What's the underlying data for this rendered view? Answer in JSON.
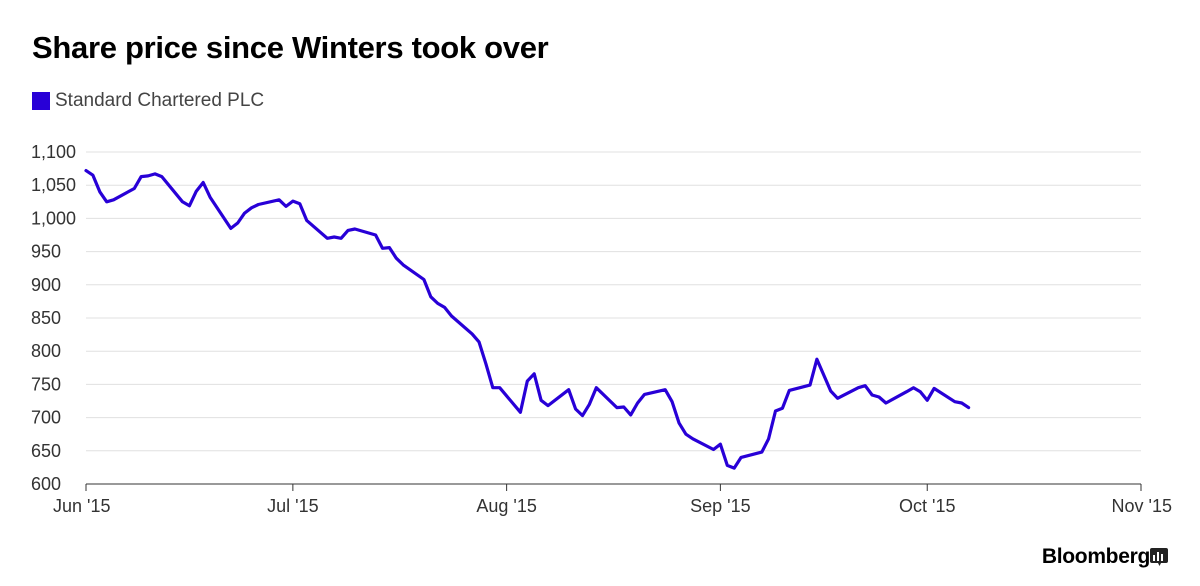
{
  "title": "Share price since Winters took over",
  "legend": {
    "label": "Standard Chartered PLC",
    "color": "#2800d7"
  },
  "brand": {
    "name": "Bloomberg",
    "icon": "bloomberg-terminal-icon"
  },
  "chart_data": {
    "type": "line",
    "title": "Share price since Winters took over",
    "xlabel": "",
    "ylabel": "",
    "ylim": [
      600,
      1100
    ],
    "yticks": [
      600,
      650,
      700,
      750,
      800,
      850,
      900,
      950,
      1000,
      1050,
      1100
    ],
    "ytick_labels": [
      "600",
      "650",
      "700",
      "750",
      "800",
      "850",
      "900",
      "950",
      "1,000",
      "1,050",
      "1,100"
    ],
    "xlim": [
      "2015-06-01",
      "2015-11-01"
    ],
    "xticks": [
      "2015-06-01",
      "2015-07-01",
      "2015-08-01",
      "2015-09-01",
      "2015-10-01",
      "2015-11-01"
    ],
    "xtick_labels": [
      "Jun '15",
      "Jul '15",
      "Aug '15",
      "Sep '15",
      "Oct '15",
      "Nov '15"
    ],
    "grid": true,
    "legend_position": "top-left",
    "series": [
      {
        "name": "Standard Chartered PLC",
        "color": "#2800d7",
        "points": [
          [
            "2015-06-01",
            1072
          ],
          [
            "2015-06-02",
            1065
          ],
          [
            "2015-06-03",
            1040
          ],
          [
            "2015-06-04",
            1025
          ],
          [
            "2015-06-05",
            1028
          ],
          [
            "2015-06-08",
            1045
          ],
          [
            "2015-06-09",
            1063
          ],
          [
            "2015-06-10",
            1064
          ],
          [
            "2015-06-11",
            1067
          ],
          [
            "2015-06-12",
            1063
          ],
          [
            "2015-06-15",
            1025
          ],
          [
            "2015-06-16",
            1019
          ],
          [
            "2015-06-17",
            1041
          ],
          [
            "2015-06-18",
            1054
          ],
          [
            "2015-06-19",
            1032
          ],
          [
            "2015-06-22",
            985
          ],
          [
            "2015-06-23",
            993
          ],
          [
            "2015-06-24",
            1008
          ],
          [
            "2015-06-25",
            1016
          ],
          [
            "2015-06-26",
            1021
          ],
          [
            "2015-06-29",
            1028
          ],
          [
            "2015-06-30",
            1018
          ],
          [
            "2015-07-01",
            1026
          ],
          [
            "2015-07-02",
            1022
          ],
          [
            "2015-07-03",
            997
          ],
          [
            "2015-07-06",
            970
          ],
          [
            "2015-07-07",
            972
          ],
          [
            "2015-07-08",
            970
          ],
          [
            "2015-07-09",
            982
          ],
          [
            "2015-07-10",
            984
          ],
          [
            "2015-07-13",
            975
          ],
          [
            "2015-07-14",
            955
          ],
          [
            "2015-07-15",
            956
          ],
          [
            "2015-07-16",
            940
          ],
          [
            "2015-07-17",
            930
          ],
          [
            "2015-07-20",
            908
          ],
          [
            "2015-07-21",
            882
          ],
          [
            "2015-07-22",
            872
          ],
          [
            "2015-07-23",
            866
          ],
          [
            "2015-07-24",
            853
          ],
          [
            "2015-07-27",
            826
          ],
          [
            "2015-07-28",
            814
          ],
          [
            "2015-07-29",
            781
          ],
          [
            "2015-07-30",
            745
          ],
          [
            "2015-07-31",
            745
          ],
          [
            "2015-08-03",
            708
          ],
          [
            "2015-08-04",
            755
          ],
          [
            "2015-08-05",
            766
          ],
          [
            "2015-08-06",
            726
          ],
          [
            "2015-08-07",
            718
          ],
          [
            "2015-08-10",
            742
          ],
          [
            "2015-08-11",
            713
          ],
          [
            "2015-08-12",
            703
          ],
          [
            "2015-08-13",
            720
          ],
          [
            "2015-08-14",
            745
          ],
          [
            "2015-08-17",
            715
          ],
          [
            "2015-08-18",
            716
          ],
          [
            "2015-08-19",
            704
          ],
          [
            "2015-08-20",
            722
          ],
          [
            "2015-08-21",
            735
          ],
          [
            "2015-08-24",
            742
          ],
          [
            "2015-08-25",
            724
          ],
          [
            "2015-08-26",
            692
          ],
          [
            "2015-08-27",
            675
          ],
          [
            "2015-08-28",
            668
          ],
          [
            "2015-08-31",
            652
          ],
          [
            "2015-09-01",
            660
          ],
          [
            "2015-09-02",
            628
          ],
          [
            "2015-09-03",
            624
          ],
          [
            "2015-09-04",
            640
          ],
          [
            "2015-09-07",
            648
          ],
          [
            "2015-09-08",
            668
          ],
          [
            "2015-09-09",
            710
          ],
          [
            "2015-09-10",
            714
          ],
          [
            "2015-09-11",
            741
          ],
          [
            "2015-09-14",
            749
          ],
          [
            "2015-09-15",
            788
          ],
          [
            "2015-09-16",
            764
          ],
          [
            "2015-09-17",
            740
          ],
          [
            "2015-09-18",
            729
          ],
          [
            "2015-09-21",
            745
          ],
          [
            "2015-09-22",
            748
          ],
          [
            "2015-09-23",
            734
          ],
          [
            "2015-09-24",
            731
          ],
          [
            "2015-09-25",
            722
          ],
          [
            "2015-09-28",
            739
          ],
          [
            "2015-09-29",
            745
          ],
          [
            "2015-09-30",
            739
          ],
          [
            "2015-10-01",
            726
          ],
          [
            "2015-10-02",
            744
          ],
          [
            "2015-10-05",
            724
          ],
          [
            "2015-10-06",
            722
          ],
          [
            "2015-10-07",
            715
          ]
        ]
      }
    ]
  }
}
